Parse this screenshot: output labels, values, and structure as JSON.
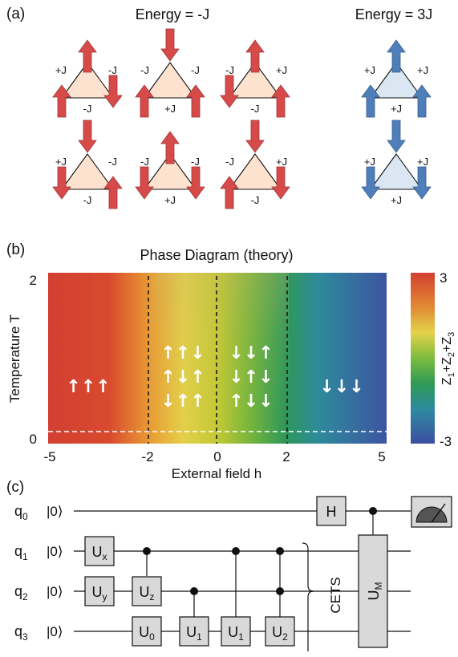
{
  "panel_a": {
    "label": "(a)",
    "title_left": "Energy = -J",
    "title_right": "Energy = 3J",
    "colors": {
      "red_arrow": "#d64a4a",
      "red_fill": "#fde2cf",
      "blue_arrow": "#4f7fba",
      "blue_fill": "#dbe6f3"
    },
    "triangles": [
      {
        "spins": [
          "up",
          "up",
          "down"
        ],
        "bonds": [
          "+J",
          "-J",
          "-J"
        ],
        "type": "red"
      },
      {
        "spins": [
          "down",
          "up",
          "up"
        ],
        "bonds": [
          "-J",
          "-J",
          "+J"
        ],
        "type": "red"
      },
      {
        "spins": [
          "up",
          "down",
          "up"
        ],
        "bonds": [
          "-J",
          "+J",
          "-J"
        ],
        "type": "red"
      },
      {
        "spins": [
          "up",
          "up",
          "up"
        ],
        "bonds": [
          "+J",
          "+J",
          "+J"
        ],
        "type": "blue"
      },
      {
        "spins": [
          "down",
          "down",
          "up"
        ],
        "bonds": [
          "+J",
          "-J",
          "-J"
        ],
        "type": "red"
      },
      {
        "spins": [
          "up",
          "down",
          "down"
        ],
        "bonds": [
          "-J",
          "-J",
          "+J"
        ],
        "type": "red"
      },
      {
        "spins": [
          "down",
          "up",
          "down"
        ],
        "bonds": [
          "-J",
          "+J",
          "-J"
        ],
        "type": "red"
      },
      {
        "spins": [
          "down",
          "down",
          "down"
        ],
        "bonds": [
          "+J",
          "+J",
          "+J"
        ],
        "type": "blue"
      }
    ]
  },
  "panel_b": {
    "label": "(b)",
    "title": "Phase Diagram (theory)",
    "xlabel": "External field h",
    "ylabel": "Temperature T",
    "xticks": [
      "-5",
      "-2",
      "0",
      "2",
      "5"
    ],
    "yticks": [
      "2",
      "0"
    ],
    "colorbar_label_parts": [
      "Z",
      "1",
      "+Z",
      "2",
      "+Z",
      "3"
    ],
    "colorbar_ticks": [
      "3",
      "-3"
    ],
    "regions": [
      {
        "arrows": [
          "↑↑↑"
        ]
      },
      {
        "arrows": [
          "↑↑↓",
          "↑↓↑",
          "↓↑↑"
        ]
      },
      {
        "arrows": [
          "↓↓↑",
          "↓↑↓",
          "↑↓↓"
        ]
      },
      {
        "arrows": [
          "↓↓↓"
        ]
      }
    ]
  },
  "panel_c": {
    "label": "(c)",
    "qubits": [
      {
        "name": "q",
        "sub": "0",
        "state": "|0⟩"
      },
      {
        "name": "q",
        "sub": "1",
        "state": "|0⟩"
      },
      {
        "name": "q",
        "sub": "2",
        "state": "|0⟩"
      },
      {
        "name": "q",
        "sub": "3",
        "state": "|0⟩"
      }
    ],
    "gates": {
      "ux": {
        "main": "U",
        "sub": "x"
      },
      "uy": {
        "main": "U",
        "sub": "y"
      },
      "uz": {
        "main": "U",
        "sub": "z"
      },
      "u0": {
        "main": "U",
        "sub": "0"
      },
      "u1a": {
        "main": "U",
        "sub": "1"
      },
      "u1b": {
        "main": "U",
        "sub": "1"
      },
      "u2": {
        "main": "U",
        "sub": "2"
      },
      "h": {
        "main": "H"
      },
      "um": {
        "main": "U",
        "sub": "M"
      }
    },
    "cets_label": "CETS"
  }
}
